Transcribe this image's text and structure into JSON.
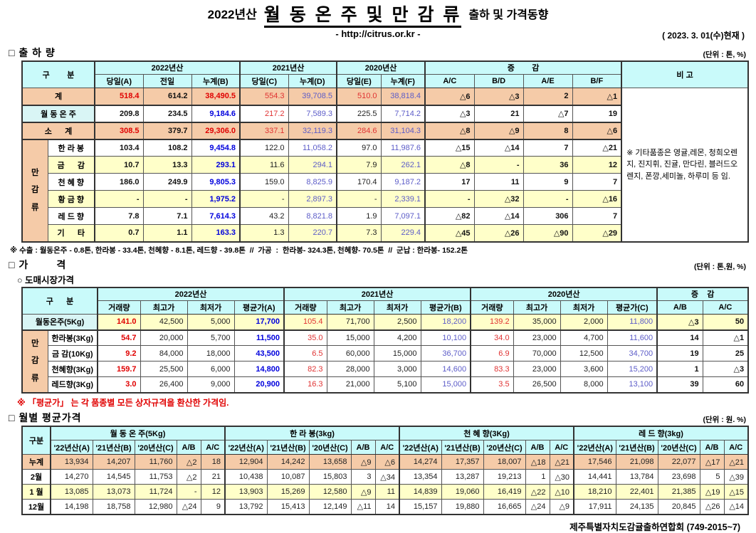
{
  "colors": {
    "header_bg": "#C9FAFA",
    "peach_bg": "#F5CBA8",
    "yellow_bg": "#FFFFC9",
    "pale_cyan_bg": "#D9F5F5",
    "red_text": "#E00000",
    "blue_text": "#0000DD",
    "violet_text": "#5C5CC8"
  },
  "page": {
    "title_year": "2022년산",
    "title_main": "월 동 온 주 및 만 감 류",
    "title_tail": "출하 및 가격동향",
    "subtitle": "- http://citrus.or.kr -",
    "date_note": "( 2023. 3. 01(수)현재 )",
    "footer": "제주특별자치도감귤출하연합회 (749-2015~7)"
  },
  "shipment": {
    "section_title": "□ 출 하 량",
    "unit_note": "(단위 : 톤, %)",
    "header": {
      "gubun": "구        분",
      "gubun_span": 2,
      "groups": [
        {
          "label": "2022년산",
          "span": 3
        },
        {
          "label": "2021년산",
          "span": 2
        },
        {
          "label": "2020년산",
          "span": 2
        },
        {
          "label": "증        감",
          "span": 4
        }
      ],
      "bigo": "비 고",
      "cols": [
        "당일(A)",
        "전일",
        "누계(B)",
        "당일(C)",
        "누계(D)",
        "당일(E)",
        "누계(F)",
        "A/C",
        "B/D",
        "A/E",
        "B/F"
      ]
    },
    "vthick": [
      0,
      3,
      5,
      7
    ],
    "bigo_cell": "※ 기타품종은 영귤,레몬, 청희오렌지, 진지휘, 진귤, 만다린, 블러드오렌지, 폰깡,세미놀, 하루미 등 임.",
    "rows": [
      {
        "label": "계",
        "label_colspan": 2,
        "bg": "peach",
        "cells": [
          [
            "518.4",
            "rb"
          ],
          [
            "614.2",
            "b"
          ],
          [
            "38,490.5",
            "rb"
          ],
          [
            "554.3",
            "r"
          ],
          [
            "39,708.5",
            "v"
          ],
          [
            "510.0",
            "r"
          ],
          [
            "38,818.4",
            "v"
          ],
          [
            "△6",
            "b"
          ],
          [
            "△3",
            "b"
          ],
          [
            "2",
            "b"
          ],
          [
            "△1",
            "b"
          ]
        ]
      },
      {
        "label": "월 동 온 주",
        "label_colspan": 2,
        "bg": "white",
        "label_bg": "cyanlite",
        "thick": true,
        "cells": [
          [
            "209.8",
            "b"
          ],
          [
            "234.5",
            "b"
          ],
          [
            "9,184.6",
            "bb"
          ],
          [
            "217.2",
            "r"
          ],
          [
            "7,589.3",
            "v"
          ],
          [
            "225.5",
            "n"
          ],
          [
            "7,714.2",
            "v"
          ],
          [
            "△3",
            "b"
          ],
          [
            "21",
            "b"
          ],
          [
            "△7",
            "b"
          ],
          [
            "19",
            "b"
          ]
        ]
      },
      {
        "label": "소      계",
        "label_colspan": 2,
        "bg": "peach",
        "thick": true,
        "cells": [
          [
            "308.5",
            "rb"
          ],
          [
            "379.7",
            "b"
          ],
          [
            "29,306.0",
            "rb"
          ],
          [
            "337.1",
            "r"
          ],
          [
            "32,119.3",
            "v"
          ],
          [
            "284.6",
            "r"
          ],
          [
            "31,104.3",
            "v"
          ],
          [
            "△8",
            "b"
          ],
          [
            "△9",
            "b"
          ],
          [
            "8",
            "b"
          ],
          [
            "△6",
            "b"
          ]
        ]
      },
      {
        "label": "한 라 봉",
        "bg": "white",
        "thick": true,
        "group": {
          "label": "만감류",
          "rows": 6
        },
        "cells": [
          [
            "103.4",
            "b"
          ],
          [
            "108.2",
            "b"
          ],
          [
            "9,454.8",
            "bb"
          ],
          [
            "122.0",
            "n"
          ],
          [
            "11,058.2",
            "v"
          ],
          [
            "97.0",
            "n"
          ],
          [
            "11,987.6",
            "v"
          ],
          [
            "△15",
            "b"
          ],
          [
            "△14",
            "b"
          ],
          [
            "7",
            "b"
          ],
          [
            "△21",
            "b"
          ]
        ]
      },
      {
        "label": "금      감",
        "bg": "yellow",
        "cells": [
          [
            "10.7",
            "b"
          ],
          [
            "13.3",
            "b"
          ],
          [
            "293.1",
            "bb"
          ],
          [
            "11.6",
            "n"
          ],
          [
            "294.1",
            "v"
          ],
          [
            "7.9",
            "n"
          ],
          [
            "262.1",
            "v"
          ],
          [
            "△8",
            "b"
          ],
          [
            "-",
            "b"
          ],
          [
            "36",
            "b"
          ],
          [
            "12",
            "b"
          ]
        ]
      },
      {
        "label": "천 혜 향",
        "bg": "white",
        "cells": [
          [
            "186.0",
            "b"
          ],
          [
            "249.9",
            "b"
          ],
          [
            "9,805.3",
            "bb"
          ],
          [
            "159.0",
            "n"
          ],
          [
            "8,825.9",
            "v"
          ],
          [
            "170.4",
            "n"
          ],
          [
            "9,187.2",
            "v"
          ],
          [
            "17",
            "b"
          ],
          [
            "11",
            "b"
          ],
          [
            "9",
            "b"
          ],
          [
            "7",
            "b"
          ]
        ]
      },
      {
        "label": "황 금 향",
        "bg": "yellow",
        "cells": [
          [
            "-",
            "b"
          ],
          [
            "-",
            "b"
          ],
          [
            "1,975.2",
            "bb"
          ],
          [
            "-",
            "n"
          ],
          [
            "2,897.3",
            "v"
          ],
          [
            "-",
            "n"
          ],
          [
            "2,339.1",
            "v"
          ],
          [
            "-",
            "b"
          ],
          [
            "△32",
            "b"
          ],
          [
            "-",
            "b"
          ],
          [
            "△16",
            "b"
          ]
        ]
      },
      {
        "label": "레 드 향",
        "bg": "white",
        "cells": [
          [
            "7.8",
            "b"
          ],
          [
            "7.1",
            "b"
          ],
          [
            "7,614.3",
            "bb"
          ],
          [
            "43.2",
            "n"
          ],
          [
            "8,821.8",
            "v"
          ],
          [
            "1.9",
            "n"
          ],
          [
            "7,097.1",
            "v"
          ],
          [
            "△82",
            "b"
          ],
          [
            "△14",
            "b"
          ],
          [
            "306",
            "b"
          ],
          [
            "7",
            "b"
          ]
        ]
      },
      {
        "label": "기      타",
        "bg": "yellow",
        "cells": [
          [
            "0.7",
            "b"
          ],
          [
            "1.1",
            "b"
          ],
          [
            "163.3",
            "bb"
          ],
          [
            "1.3",
            "n"
          ],
          [
            "220.7",
            "v"
          ],
          [
            "7.3",
            "n"
          ],
          [
            "229.4",
            "v"
          ],
          [
            "△45",
            "b"
          ],
          [
            "△26",
            "b"
          ],
          [
            "△90",
            "b"
          ],
          [
            "△29",
            "b"
          ]
        ]
      }
    ],
    "footnote": "※ 수출 : 월동온주 - 0.8톤, 한라봉 - 33.4톤, 천혜향 - 8.1톤, 레드향 - 39.8톤  //  가공  :  한라봉- 324.3톤, 천혜향- 70.5톤  //  군납 : 한라봉- 152.2톤"
  },
  "price": {
    "section_title": "□ 가        격",
    "sub_title": "○ 도매시장가격",
    "unit_note": "(단위 : 톤,원, %)",
    "header": {
      "gubun": "구      분",
      "gubun_span": 2,
      "groups": [
        {
          "label": "2022년산",
          "span": 4
        },
        {
          "label": "2021년산",
          "span": 4
        },
        {
          "label": "2020년산",
          "span": 4
        },
        {
          "label": "증    감",
          "span": 2
        }
      ],
      "cols": [
        "거래량",
        "최고가",
        "최저가",
        "평균가(A)",
        "거래량",
        "최고가",
        "최저가",
        "평균가(B)",
        "거래량",
        "최고가",
        "최저가",
        "평균가(C)",
        "A/B",
        "A/C"
      ]
    },
    "vthick": [
      0,
      4,
      8,
      12
    ],
    "dotted": [
      13
    ],
    "rows": [
      {
        "label": "월동온주(5Kg)",
        "label_colspan": 2,
        "bg": "yellow",
        "label_bg": "cyanlite",
        "cells": [
          [
            "141.0",
            "rb"
          ],
          [
            "42,500",
            "n"
          ],
          [
            "5,000",
            "n"
          ],
          [
            "17,700",
            "bb"
          ],
          [
            "105.4",
            "r"
          ],
          [
            "71,700",
            "n"
          ],
          [
            "2,500",
            "n"
          ],
          [
            "18,200",
            "v"
          ],
          [
            "139.2",
            "r"
          ],
          [
            "35,000",
            "n"
          ],
          [
            "2,000",
            "n"
          ],
          [
            "11,800",
            "v"
          ],
          [
            "△3",
            "b"
          ],
          [
            "50",
            "b"
          ]
        ]
      },
      {
        "label": "한라봉(3Kg)",
        "bg": "white",
        "thick": true,
        "group": {
          "label": "만감류",
          "rows": 4
        },
        "cells": [
          [
            "54.7",
            "rb"
          ],
          [
            "20,000",
            "n"
          ],
          [
            "5,700",
            "n"
          ],
          [
            "11,500",
            "bb"
          ],
          [
            "35.0",
            "r"
          ],
          [
            "15,000",
            "n"
          ],
          [
            "4,200",
            "n"
          ],
          [
            "10,100",
            "v"
          ],
          [
            "34.0",
            "r"
          ],
          [
            "23,000",
            "n"
          ],
          [
            "4,700",
            "n"
          ],
          [
            "11,600",
            "v"
          ],
          [
            "14",
            "b"
          ],
          [
            "△1",
            "b"
          ]
        ]
      },
      {
        "label": "금 감(10Kg)",
        "bg": "white",
        "cells": [
          [
            "9.2",
            "rb"
          ],
          [
            "84,000",
            "n"
          ],
          [
            "18,000",
            "n"
          ],
          [
            "43,500",
            "bb"
          ],
          [
            "6.5",
            "r"
          ],
          [
            "60,000",
            "n"
          ],
          [
            "15,000",
            "n"
          ],
          [
            "36,700",
            "v"
          ],
          [
            "6.9",
            "r"
          ],
          [
            "70,000",
            "n"
          ],
          [
            "12,500",
            "n"
          ],
          [
            "34,700",
            "v"
          ],
          [
            "19",
            "b"
          ],
          [
            "25",
            "b"
          ]
        ]
      },
      {
        "label": "천혜향(3Kg)",
        "bg": "white",
        "cells": [
          [
            "159.7",
            "rb"
          ],
          [
            "25,500",
            "n"
          ],
          [
            "6,000",
            "n"
          ],
          [
            "14,800",
            "bb"
          ],
          [
            "82.3",
            "r"
          ],
          [
            "28,000",
            "n"
          ],
          [
            "3,000",
            "n"
          ],
          [
            "14,600",
            "v"
          ],
          [
            "83.3",
            "r"
          ],
          [
            "23,000",
            "n"
          ],
          [
            "3,600",
            "n"
          ],
          [
            "15,200",
            "v"
          ],
          [
            "1",
            "b"
          ],
          [
            "△3",
            "b"
          ]
        ]
      },
      {
        "label": "레드향(3Kg)",
        "bg": "white",
        "cells": [
          [
            "3.0",
            "rb"
          ],
          [
            "26,400",
            "n"
          ],
          [
            "9,000",
            "n"
          ],
          [
            "20,900",
            "bb"
          ],
          [
            "16.3",
            "r"
          ],
          [
            "21,000",
            "n"
          ],
          [
            "5,100",
            "n"
          ],
          [
            "15,000",
            "v"
          ],
          [
            "3.5",
            "r"
          ],
          [
            "26,500",
            "n"
          ],
          [
            "8,000",
            "n"
          ],
          [
            "13,100",
            "v"
          ],
          [
            "39",
            "b"
          ],
          [
            "60",
            "b"
          ]
        ]
      }
    ],
    "footnote": "※  「평균가」 는 각 품종별 모든 상자규격을 환산한 가격임."
  },
  "monthly": {
    "section_title": "□ 월별 평균가격",
    "unit_note": "(단위 : 원. %)",
    "header": {
      "gubun": "구분",
      "gubun_span": 1,
      "groups": [
        {
          "label": "월 동 온 주(5Kg)",
          "span": 5
        },
        {
          "label": "한 라 봉(3kg)",
          "span": 5
        },
        {
          "label": "천 혜 향(3Kg)",
          "span": 5
        },
        {
          "label": "레 드 향(3kg)",
          "span": 5
        }
      ],
      "cols": [
        "'22년산(A)",
        "'21년산(B)",
        "'20년산(C)",
        "A/B",
        "A/C",
        "'22년산(A)",
        "'21년산(B)",
        "'20년산(C)",
        "A/B",
        "A/C",
        "'22년산(A)",
        "'21년산(B)",
        "'20년산(C)",
        "A/B",
        "A/C",
        "'22년산(A)",
        "'21년산(B)",
        "'20년산(C)",
        "A/B",
        "A/C"
      ]
    },
    "vthick": [
      0,
      5,
      10,
      15
    ],
    "rows": [
      {
        "label": "누계",
        "bg": "peach",
        "label_bg": "peach",
        "cells": [
          "13,934",
          "14,207",
          "11,760",
          "△2",
          "18",
          "12,904",
          "14,242",
          "13,658",
          "△9",
          "△6",
          "14,274",
          "17,357",
          "18,007",
          "△18",
          "△21",
          "17,546",
          "21,098",
          "22,077",
          "△17",
          "△21"
        ]
      },
      {
        "label": "2월",
        "bg": "white",
        "cells": [
          "14,270",
          "14,545",
          "11,753",
          "△2",
          "21",
          "10,438",
          "10,087",
          "15,803",
          "3",
          "△34",
          "13,354",
          "13,287",
          "19,213",
          "1",
          "△30",
          "14,441",
          "13,784",
          "23,698",
          "5",
          "△39"
        ]
      },
      {
        "label": "1 월",
        "bg": "yellow",
        "label_bg": "white",
        "cells": [
          "13,085",
          "13,073",
          "11,724",
          "-",
          "12",
          "13,903",
          "15,269",
          "12,580",
          "△9",
          "11",
          "14,839",
          "19,060",
          "16,419",
          "△22",
          "△10",
          "18,210",
          "22,401",
          "21,385",
          "△19",
          "△15"
        ]
      },
      {
        "label": "12월",
        "bg": "white",
        "cells": [
          "14,198",
          "18,758",
          "12,980",
          "△24",
          "9",
          "13,792",
          "15,413",
          "12,149",
          "△11",
          "14",
          "15,157",
          "19,880",
          "16,665",
          "△24",
          "△9",
          "17,911",
          "24,135",
          "20,845",
          "△26",
          "△14"
        ]
      }
    ]
  }
}
